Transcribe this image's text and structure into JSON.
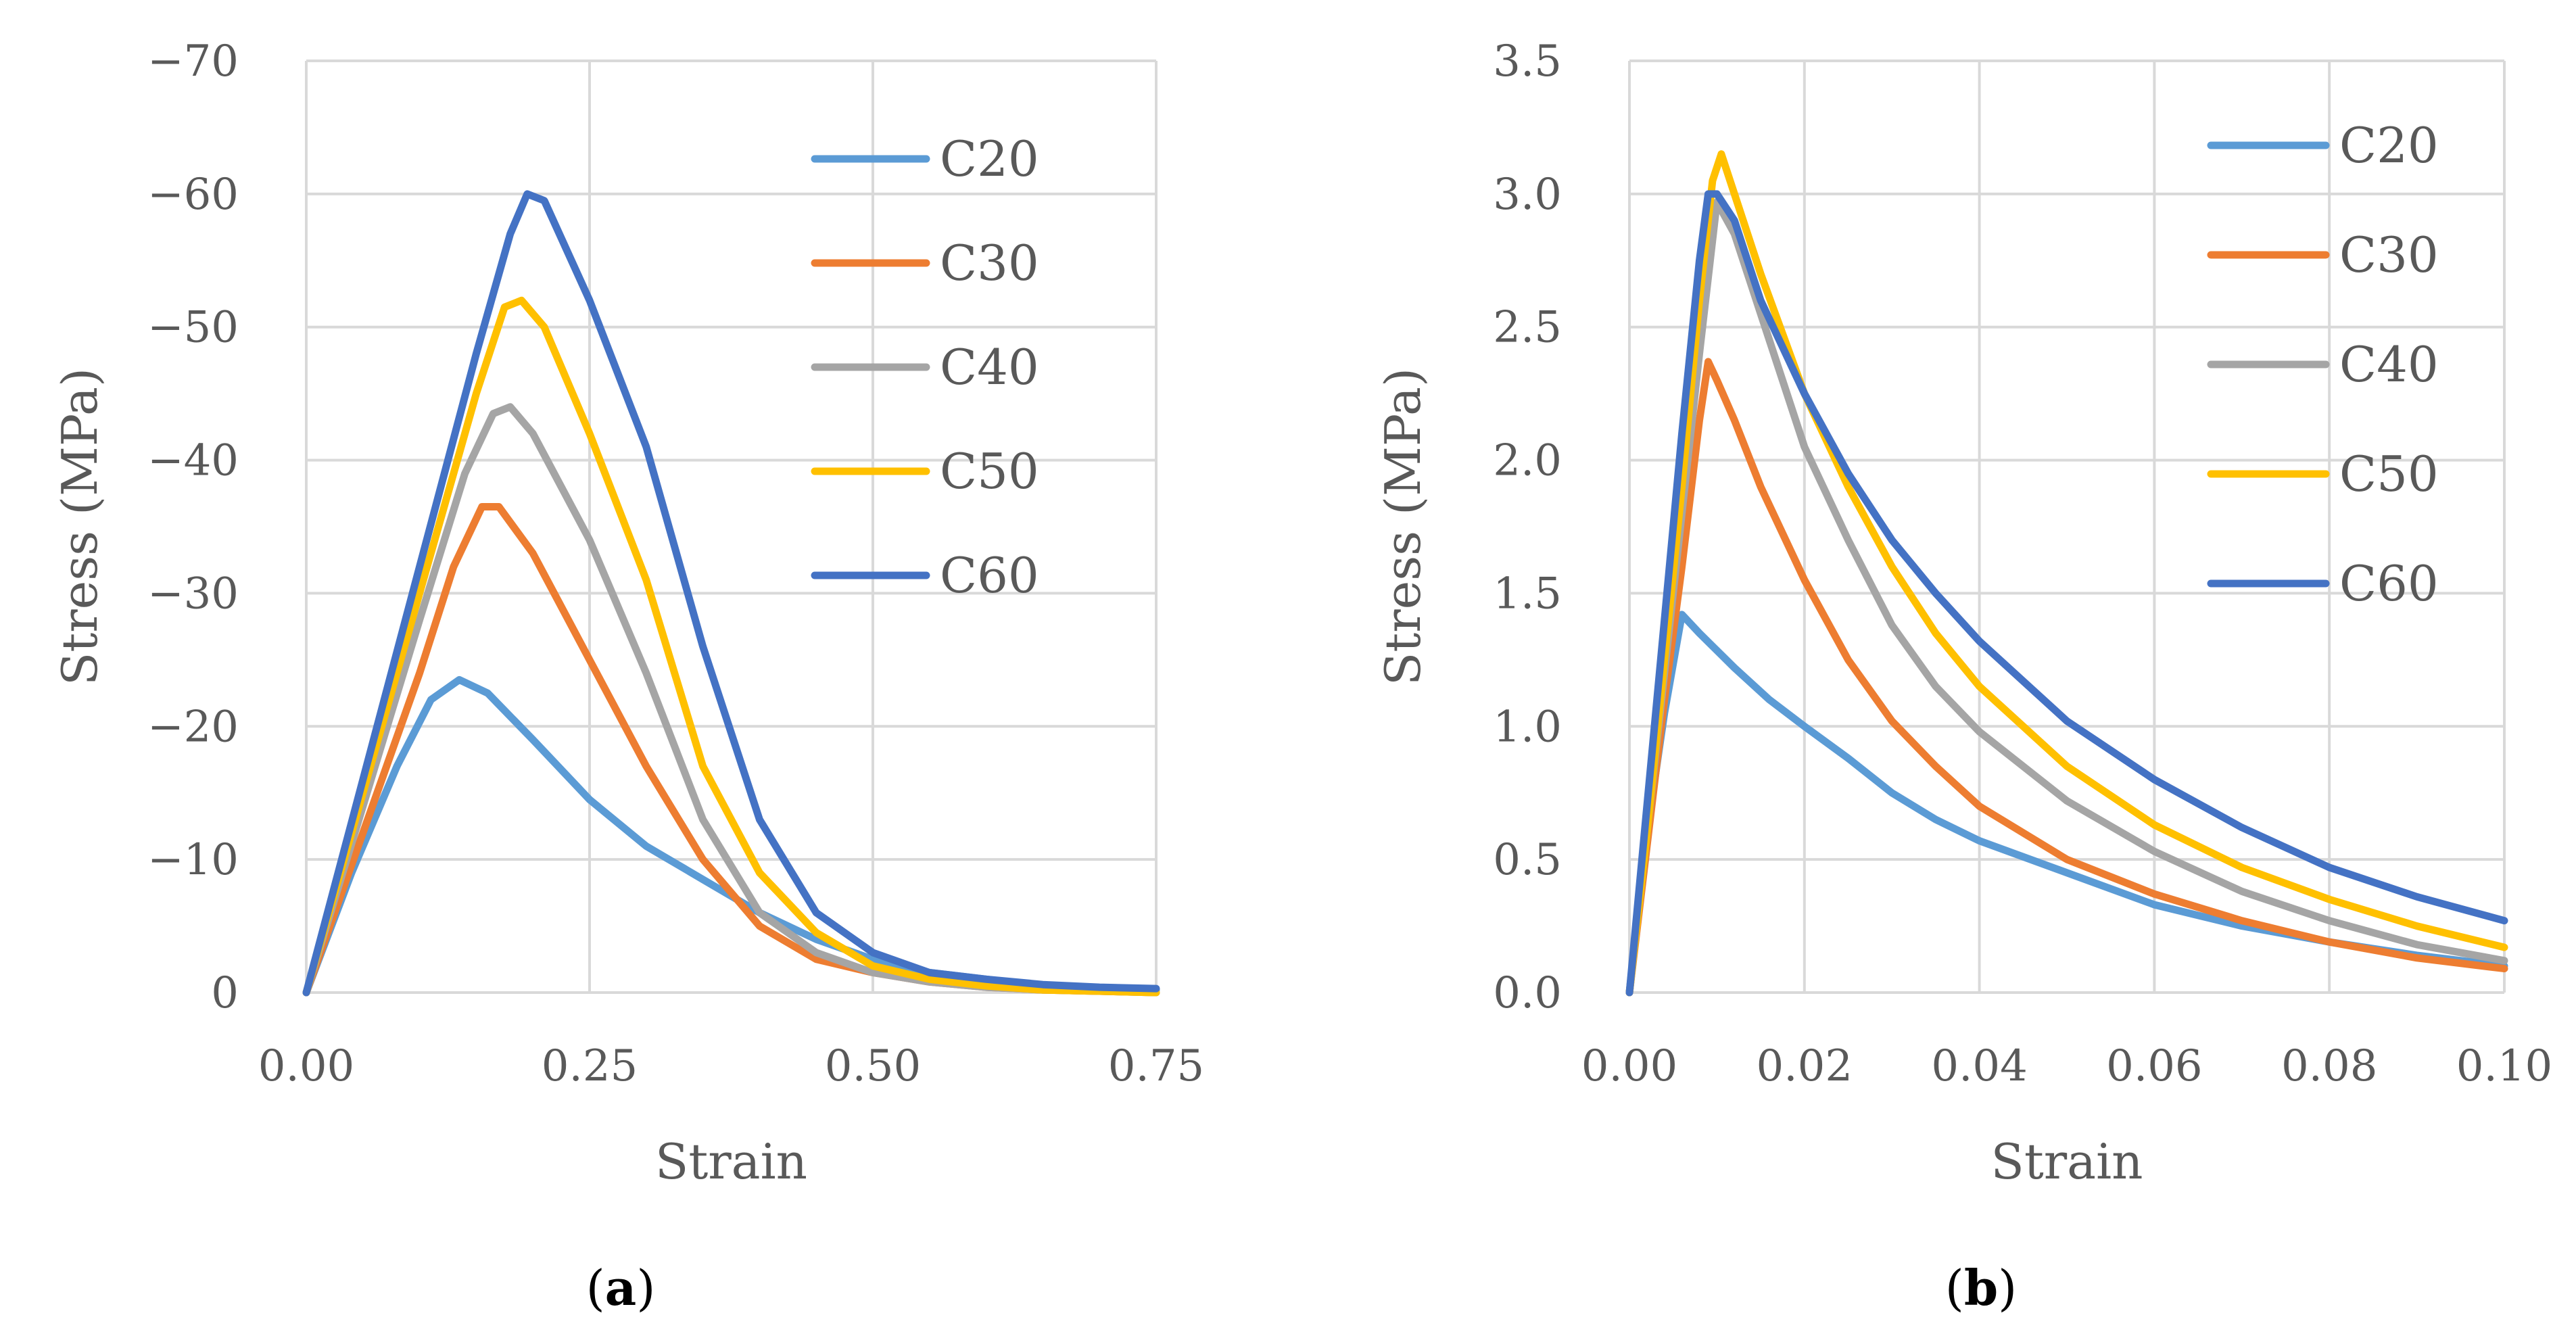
{
  "chart_data": [
    {
      "type": "line",
      "caption_letter": "a",
      "xlabel": "Strain",
      "ylabel": "Stress (MPa)",
      "xlim": [
        0,
        0.75
      ],
      "ylim": [
        0,
        -70
      ],
      "xticks": [
        "0.00",
        "0.25",
        "0.50",
        "0.75"
      ],
      "xtick_values": [
        0,
        0.25,
        0.5,
        0.75
      ],
      "yticks": [
        "0",
        "−10",
        "−20",
        "−30",
        "−40",
        "−50",
        "−60",
        "−70"
      ],
      "ytick_values": [
        0,
        -10,
        -20,
        -30,
        -40,
        -50,
        -60,
        -70
      ],
      "grid": true,
      "legend_position": "top-right",
      "series": [
        {
          "name": "C20",
          "color": "#5B9BD5",
          "x": [
            0,
            0.04,
            0.08,
            0.11,
            0.135,
            0.16,
            0.2,
            0.25,
            0.3,
            0.35,
            0.4,
            0.45,
            0.5,
            0.55,
            0.6,
            0.65,
            0.7,
            0.75
          ],
          "y": [
            0,
            -9,
            -17,
            -22,
            -23.5,
            -22.5,
            -19,
            -14.5,
            -11,
            -8.5,
            -6,
            -4,
            -2.5,
            -1.5,
            -1,
            -0.5,
            -0.3,
            -0.2
          ]
        },
        {
          "name": "C30",
          "color": "#ED7D31",
          "x": [
            0,
            0.05,
            0.1,
            0.13,
            0.155,
            0.17,
            0.2,
            0.25,
            0.3,
            0.35,
            0.4,
            0.45,
            0.5,
            0.55,
            0.6,
            0.65,
            0.7,
            0.75
          ],
          "y": [
            0,
            -12,
            -24,
            -32,
            -36.5,
            -36.5,
            -33,
            -25,
            -17,
            -10,
            -5,
            -2.5,
            -1.5,
            -0.8,
            -0.4,
            -0.2,
            -0.1,
            0
          ]
        },
        {
          "name": "C40",
          "color": "#A5A5A5",
          "x": [
            0,
            0.05,
            0.1,
            0.14,
            0.165,
            0.18,
            0.2,
            0.25,
            0.3,
            0.35,
            0.4,
            0.45,
            0.5,
            0.55,
            0.6,
            0.65,
            0.7,
            0.75
          ],
          "y": [
            0,
            -14,
            -28,
            -39,
            -43.5,
            -44,
            -42,
            -34,
            -24,
            -13,
            -6,
            -3,
            -1.5,
            -0.8,
            -0.4,
            -0.2,
            -0.1,
            0
          ]
        },
        {
          "name": "C50",
          "color": "#FFC000",
          "x": [
            0,
            0.05,
            0.1,
            0.15,
            0.175,
            0.19,
            0.21,
            0.25,
            0.3,
            0.35,
            0.4,
            0.45,
            0.5,
            0.55,
            0.6,
            0.65,
            0.7,
            0.75
          ],
          "y": [
            0,
            -15,
            -30,
            -45,
            -51.5,
            -52,
            -50,
            -42,
            -31,
            -17,
            -9,
            -4.5,
            -2,
            -1,
            -0.5,
            -0.2,
            -0.1,
            0
          ]
        },
        {
          "name": "C60",
          "color": "#4472C4",
          "x": [
            0,
            0.05,
            0.1,
            0.15,
            0.18,
            0.195,
            0.21,
            0.25,
            0.3,
            0.35,
            0.4,
            0.45,
            0.5,
            0.55,
            0.6,
            0.65,
            0.7,
            0.75
          ],
          "y": [
            0,
            -16,
            -32,
            -48,
            -57,
            -60,
            -59.5,
            -52,
            -41,
            -26,
            -13,
            -6,
            -3,
            -1.5,
            -1,
            -0.6,
            -0.4,
            -0.3
          ]
        }
      ]
    },
    {
      "type": "line",
      "caption_letter": "b",
      "xlabel": "Strain",
      "ylabel": "Stress (MPa)",
      "xlim": [
        0,
        0.1
      ],
      "ylim": [
        0,
        3.5
      ],
      "xticks": [
        "0.00",
        "0.02",
        "0.04",
        "0.06",
        "0.08",
        "0.10"
      ],
      "xtick_values": [
        0,
        0.02,
        0.04,
        0.06,
        0.08,
        0.1
      ],
      "yticks": [
        "0.0",
        "0.5",
        "1.0",
        "1.5",
        "2.0",
        "2.5",
        "3.0",
        "3.5"
      ],
      "ytick_values": [
        0,
        0.5,
        1,
        1.5,
        2,
        2.5,
        3,
        3.5
      ],
      "grid": true,
      "legend_position": "top-right",
      "series": [
        {
          "name": "C20",
          "color": "#5B9BD5",
          "x": [
            0,
            0.002,
            0.004,
            0.006,
            0.008,
            0.012,
            0.016,
            0.02,
            0.025,
            0.03,
            0.035,
            0.04,
            0.05,
            0.06,
            0.07,
            0.08,
            0.09,
            0.1
          ],
          "y": [
            0,
            0.6,
            1.05,
            1.42,
            1.35,
            1.22,
            1.1,
            1.0,
            0.88,
            0.75,
            0.65,
            0.57,
            0.45,
            0.33,
            0.25,
            0.19,
            0.14,
            0.1
          ]
        },
        {
          "name": "C30",
          "color": "#ED7D31",
          "x": [
            0,
            0.002,
            0.004,
            0.006,
            0.008,
            0.009,
            0.01,
            0.012,
            0.015,
            0.02,
            0.025,
            0.03,
            0.035,
            0.04,
            0.05,
            0.06,
            0.07,
            0.08,
            0.09,
            0.1
          ],
          "y": [
            0,
            0.55,
            1.1,
            1.6,
            2.15,
            2.37,
            2.3,
            2.15,
            1.9,
            1.55,
            1.25,
            1.02,
            0.85,
            0.7,
            0.5,
            0.37,
            0.27,
            0.19,
            0.13,
            0.09
          ]
        },
        {
          "name": "C40",
          "color": "#A5A5A5",
          "x": [
            0,
            0.002,
            0.004,
            0.006,
            0.008,
            0.01,
            0.012,
            0.015,
            0.02,
            0.025,
            0.03,
            0.035,
            0.04,
            0.05,
            0.06,
            0.07,
            0.08,
            0.09,
            0.1
          ],
          "y": [
            0,
            0.6,
            1.2,
            1.8,
            2.4,
            2.97,
            2.85,
            2.55,
            2.05,
            1.7,
            1.38,
            1.15,
            0.98,
            0.72,
            0.53,
            0.38,
            0.27,
            0.18,
            0.12
          ]
        },
        {
          "name": "C50",
          "color": "#FFC000",
          "x": [
            0,
            0.002,
            0.004,
            0.006,
            0.008,
            0.0095,
            0.0105,
            0.012,
            0.015,
            0.02,
            0.025,
            0.03,
            0.035,
            0.04,
            0.05,
            0.06,
            0.07,
            0.08,
            0.09,
            0.1
          ],
          "y": [
            0,
            0.6,
            1.25,
            1.9,
            2.6,
            3.05,
            3.15,
            3.0,
            2.7,
            2.25,
            1.9,
            1.6,
            1.35,
            1.15,
            0.85,
            0.63,
            0.47,
            0.35,
            0.25,
            0.17
          ]
        },
        {
          "name": "C60",
          "color": "#4472C4",
          "x": [
            0,
            0.002,
            0.004,
            0.006,
            0.008,
            0.009,
            0.01,
            0.012,
            0.015,
            0.02,
            0.025,
            0.03,
            0.035,
            0.04,
            0.05,
            0.06,
            0.07,
            0.08,
            0.09,
            0.1
          ],
          "y": [
            0,
            0.7,
            1.4,
            2.1,
            2.75,
            3.0,
            3.0,
            2.9,
            2.6,
            2.25,
            1.95,
            1.7,
            1.5,
            1.32,
            1.02,
            0.8,
            0.62,
            0.47,
            0.36,
            0.27
          ]
        }
      ]
    }
  ]
}
